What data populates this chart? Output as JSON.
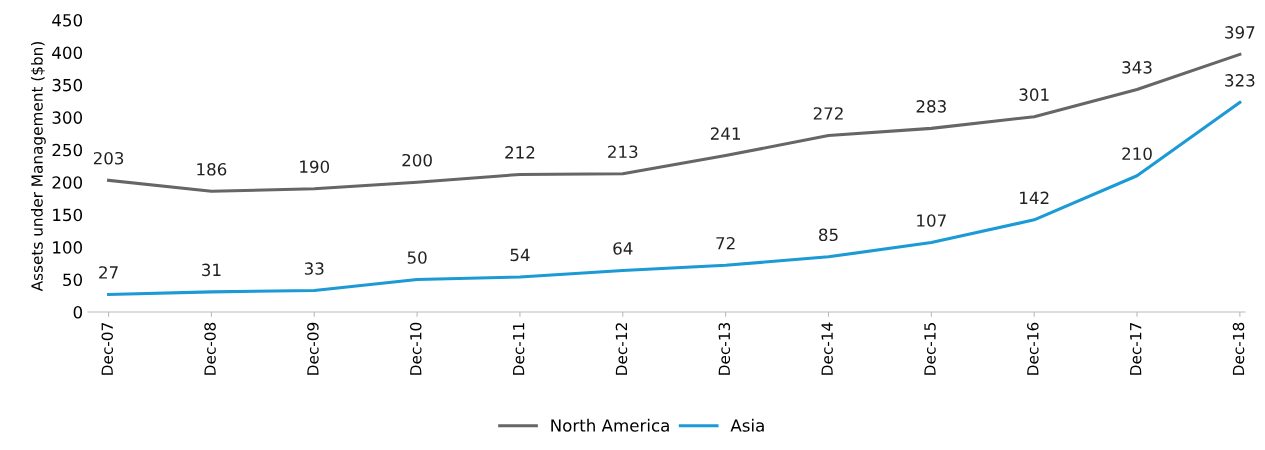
{
  "chart_data": {
    "type": "line",
    "ylabel": "Assets under Management ($bn)",
    "categories": [
      "Dec-07",
      "Dec-08",
      "Dec-09",
      "Dec-10",
      "Dec-11",
      "Dec-12",
      "Dec-13",
      "Dec-14",
      "Dec-15",
      "Dec-16",
      "Dec-17",
      "Dec-18"
    ],
    "series": [
      {
        "name": "North America",
        "color": "#666666",
        "values": [
          203,
          186,
          190,
          200,
          212,
          213,
          241,
          272,
          283,
          301,
          343,
          397
        ]
      },
      {
        "name": "Asia",
        "color": "#1b9ad6",
        "values": [
          27,
          31,
          33,
          50,
          54,
          64,
          72,
          85,
          107,
          142,
          210,
          323
        ]
      }
    ],
    "ylim": [
      0,
      450
    ],
    "yticks": [
      0,
      50,
      100,
      150,
      200,
      250,
      300,
      350,
      400,
      450
    ],
    "data_labels": true,
    "legend": "bottom",
    "grid": false,
    "marker": "none",
    "line_style": "solid"
  }
}
